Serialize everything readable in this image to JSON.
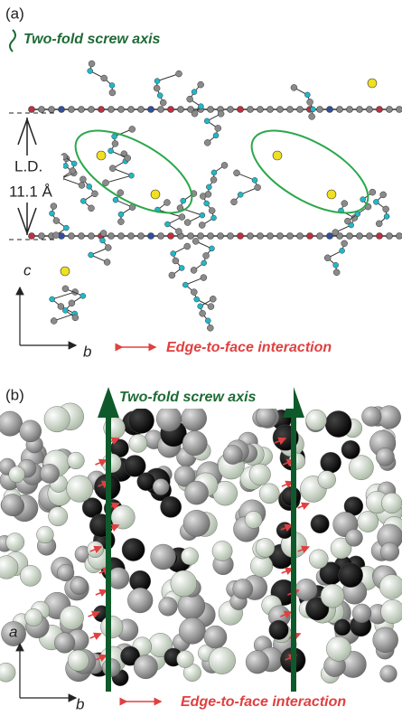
{
  "panel_a": {
    "label": "(a)",
    "screw_axis_legend": "Two-fold screw axis",
    "layer_label": "L.D.",
    "layer_distance": "11.1 Å",
    "axis_vertical": "c",
    "axis_horizontal": "b",
    "interaction_legend": "Edge-to-face interaction"
  },
  "panel_b": {
    "label": "(b)",
    "screw_axis_legend": "Two-fold screw axis",
    "axis_vertical": "a",
    "axis_horizontal": "b",
    "interaction_legend": "Edge-to-face interaction"
  }
}
